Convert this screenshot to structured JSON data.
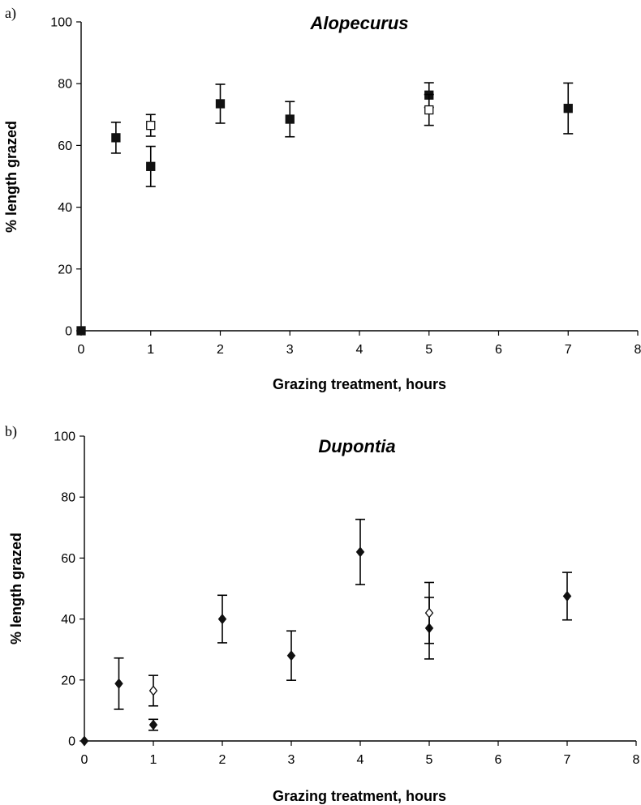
{
  "chart_data": [
    {
      "type": "scatter",
      "panel_label": "a)",
      "title": "Alopecurus",
      "xlabel": "Grazing treatment, hours",
      "ylabel": "% length grazed",
      "xlim": [
        0,
        8
      ],
      "ylim": [
        0,
        100
      ],
      "x_ticks": [
        "0",
        "1",
        "2",
        "3",
        "4",
        "5",
        "6",
        "7",
        "8"
      ],
      "y_ticks": [
        "0",
        "20",
        "40",
        "60",
        "80",
        "100"
      ],
      "grid": false,
      "marker": "square",
      "series": [
        {
          "filled": true,
          "points": [
            {
              "x": 0,
              "y": 0,
              "err": 0
            },
            {
              "x": 0.5,
              "y": 62.5,
              "err": 5
            },
            {
              "x": 1,
              "y": 53.2,
              "err": 6.5
            },
            {
              "x": 2,
              "y": 73.5,
              "err": 6.3
            },
            {
              "x": 3,
              "y": 68.5,
              "err": 5.7
            },
            {
              "x": 5,
              "y": 76.3,
              "err": 4
            },
            {
              "x": 7,
              "y": 72,
              "err": 8.2
            }
          ]
        },
        {
          "filled": false,
          "points": [
            {
              "x": 1,
              "y": 66.5,
              "err": 3.5
            },
            {
              "x": 5,
              "y": 71.5,
              "err": 5
            }
          ]
        }
      ]
    },
    {
      "type": "scatter",
      "panel_label": "b)",
      "title": "Dupontia",
      "xlabel": "Grazing treatment, hours",
      "ylabel": "% length grazed",
      "xlim": [
        0,
        8
      ],
      "ylim": [
        0,
        100
      ],
      "x_ticks": [
        "0",
        "1",
        "2",
        "3",
        "4",
        "5",
        "6",
        "7",
        "8"
      ],
      "y_ticks": [
        "0",
        "20",
        "40",
        "60",
        "80",
        "100"
      ],
      "grid": false,
      "marker": "diamond",
      "series": [
        {
          "filled": true,
          "points": [
            {
              "x": 0,
              "y": 0,
              "err": 0
            },
            {
              "x": 0.5,
              "y": 18.8,
              "err": 8.4
            },
            {
              "x": 1,
              "y": 5.3,
              "err": 1.8
            },
            {
              "x": 2,
              "y": 40,
              "err": 7.8
            },
            {
              "x": 3,
              "y": 28,
              "err": 8.1
            },
            {
              "x": 4,
              "y": 62,
              "err": 10.7
            },
            {
              "x": 5,
              "y": 37,
              "err": 10.1
            },
            {
              "x": 7,
              "y": 47.5,
              "err": 7.8
            }
          ]
        },
        {
          "filled": false,
          "points": [
            {
              "x": 1,
              "y": 16.5,
              "err": 5
            },
            {
              "x": 5,
              "y": 42,
              "err": 10
            }
          ]
        }
      ]
    }
  ]
}
